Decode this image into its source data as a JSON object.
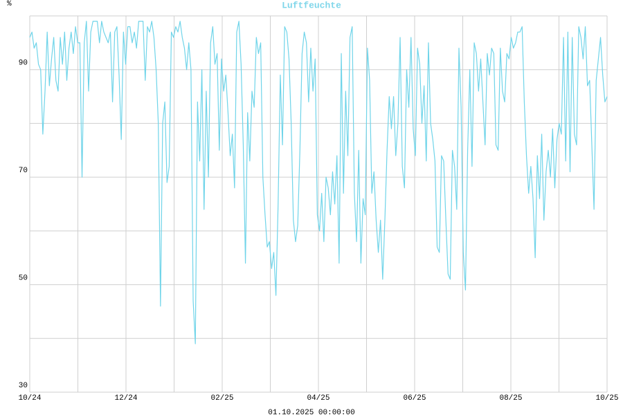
{
  "chart_data": {
    "type": "line",
    "title": "Luftfeuchte",
    "ylabel": "%",
    "note": "01.10.2025 00:00:00",
    "color": "#6fd4e9",
    "title_color": "#7fd6ea",
    "grid": true,
    "ylim": [
      30,
      100
    ],
    "yticks": [
      30,
      50,
      70,
      90
    ],
    "yminor": [
      40,
      60,
      80,
      100
    ],
    "xlim": [
      0,
      12
    ],
    "xticks": [
      {
        "value": 0,
        "label": "10/24"
      },
      {
        "value": 2,
        "label": "12/24"
      },
      {
        "value": 4,
        "label": "02/25"
      },
      {
        "value": 6,
        "label": "04/25"
      },
      {
        "value": 8,
        "label": "06/25"
      },
      {
        "value": 10,
        "label": "08/25"
      },
      {
        "value": 12,
        "label": "10/25"
      }
    ],
    "xminor": [
      1,
      3,
      5,
      7,
      9,
      11
    ],
    "values": [
      96,
      97,
      94,
      95,
      91,
      90,
      78,
      86,
      97,
      87,
      92,
      96,
      88,
      86,
      96,
      91,
      97,
      88,
      94,
      97,
      93,
      98,
      95,
      95,
      70,
      95,
      99,
      86,
      97,
      99,
      99,
      99,
      95,
      99,
      97,
      96,
      95,
      97,
      84,
      97,
      98,
      89,
      77,
      97,
      91,
      98,
      98,
      95,
      97,
      94,
      99,
      99,
      99,
      88,
      98,
      97,
      99,
      96,
      90,
      80,
      46,
      80,
      84,
      69,
      72,
      97,
      96,
      98,
      97,
      99,
      96,
      94,
      90,
      95,
      90,
      47,
      39,
      84,
      73,
      90,
      64,
      86,
      70,
      95,
      98,
      91,
      93,
      75,
      92,
      86,
      89,
      82,
      74,
      78,
      68,
      97,
      99,
      91,
      76,
      54,
      82,
      73,
      86,
      83,
      96,
      93,
      95,
      70,
      63,
      57,
      58,
      53,
      56,
      48,
      65,
      89,
      76,
      98,
      97,
      92,
      80,
      62,
      58,
      61,
      75,
      93,
      97,
      95,
      84,
      94,
      86,
      92,
      63,
      60,
      67,
      58,
      70,
      68,
      63,
      71,
      65,
      74,
      54,
      93,
      67,
      86,
      74,
      96,
      98,
      67,
      58,
      75,
      54,
      66,
      63,
      94,
      88,
      67,
      71,
      62,
      56,
      62,
      51,
      62,
      75,
      85,
      79,
      85,
      74,
      80,
      96,
      72,
      68,
      90,
      83,
      96,
      79,
      74,
      94,
      91,
      80,
      87,
      73,
      95,
      80,
      77,
      73,
      57,
      56,
      74,
      73,
      62,
      52,
      51,
      75,
      72,
      64,
      94,
      83,
      56,
      49,
      75,
      90,
      72,
      95,
      93,
      86,
      92,
      84,
      76,
      93,
      89,
      94,
      93,
      76,
      75,
      94,
      86,
      84,
      93,
      92,
      96,
      94,
      95,
      97,
      97,
      98,
      84,
      74,
      67,
      72,
      66,
      55,
      74,
      66,
      78,
      62,
      71,
      75,
      70,
      79,
      68,
      77,
      80,
      78,
      96,
      73,
      97,
      71,
      96,
      78,
      76,
      98,
      96,
      92,
      98,
      87,
      88,
      76,
      64,
      88,
      92,
      96,
      89,
      84,
      85
    ]
  }
}
